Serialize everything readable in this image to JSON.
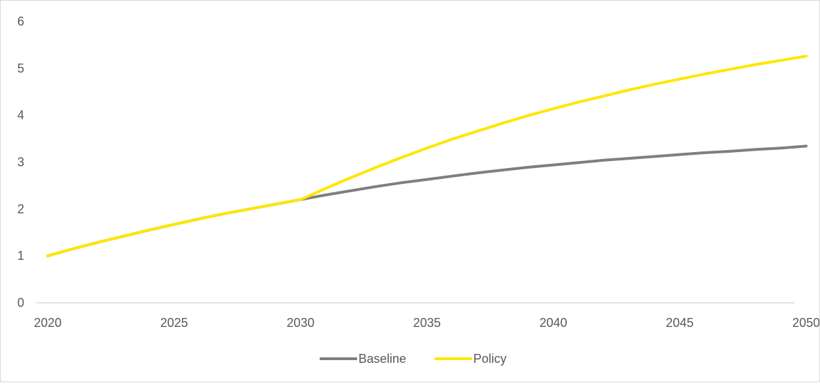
{
  "chart_data": {
    "type": "line",
    "title": "",
    "xlabel": "",
    "ylabel": "",
    "x": [
      2020,
      2021,
      2022,
      2023,
      2024,
      2025,
      2026,
      2027,
      2028,
      2029,
      2030,
      2031,
      2032,
      2033,
      2034,
      2035,
      2036,
      2037,
      2038,
      2039,
      2040,
      2041,
      2042,
      2043,
      2044,
      2045,
      2046,
      2047,
      2048,
      2049,
      2050
    ],
    "xlim": [
      2020,
      2050
    ],
    "ylim": [
      0,
      6
    ],
    "x_ticks": [
      "2020",
      "2025",
      "2030",
      "2035",
      "2040",
      "2045",
      "2050"
    ],
    "y_ticks": [
      "0",
      "1",
      "2",
      "3",
      "4",
      "5",
      "6"
    ],
    "grid": false,
    "legend_position": "bottom",
    "series": [
      {
        "name": "Baseline",
        "color": "#7f7f7f",
        "values": [
          1.0,
          1.15,
          1.29,
          1.42,
          1.55,
          1.67,
          1.79,
          1.9,
          2.0,
          2.1,
          2.2,
          2.3,
          2.39,
          2.48,
          2.56,
          2.63,
          2.7,
          2.77,
          2.83,
          2.89,
          2.94,
          2.99,
          3.04,
          3.08,
          3.12,
          3.16,
          3.2,
          3.23,
          3.27,
          3.3,
          3.34
        ]
      },
      {
        "name": "Policy",
        "color": "#ffe600",
        "values": [
          1.0,
          1.15,
          1.29,
          1.42,
          1.55,
          1.67,
          1.79,
          1.9,
          2.0,
          2.1,
          2.2,
          2.44,
          2.67,
          2.89,
          3.1,
          3.3,
          3.49,
          3.66,
          3.83,
          3.99,
          4.14,
          4.28,
          4.41,
          4.54,
          4.66,
          4.77,
          4.88,
          4.98,
          5.08,
          5.17,
          5.26
        ]
      }
    ]
  }
}
